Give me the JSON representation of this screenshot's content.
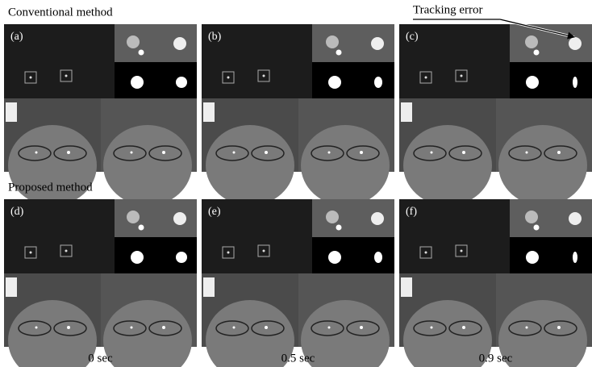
{
  "sections": [
    {
      "title": "Conventional method",
      "panels": [
        "(a)",
        "(b)",
        "(c)"
      ]
    },
    {
      "title": "Proposed method",
      "panels": [
        "(d)",
        "(e)",
        "(f)"
      ]
    }
  ],
  "annotation": "Tracking error",
  "time_labels": [
    "0 sec",
    "0.5 sec",
    "0.9 sec"
  ]
}
